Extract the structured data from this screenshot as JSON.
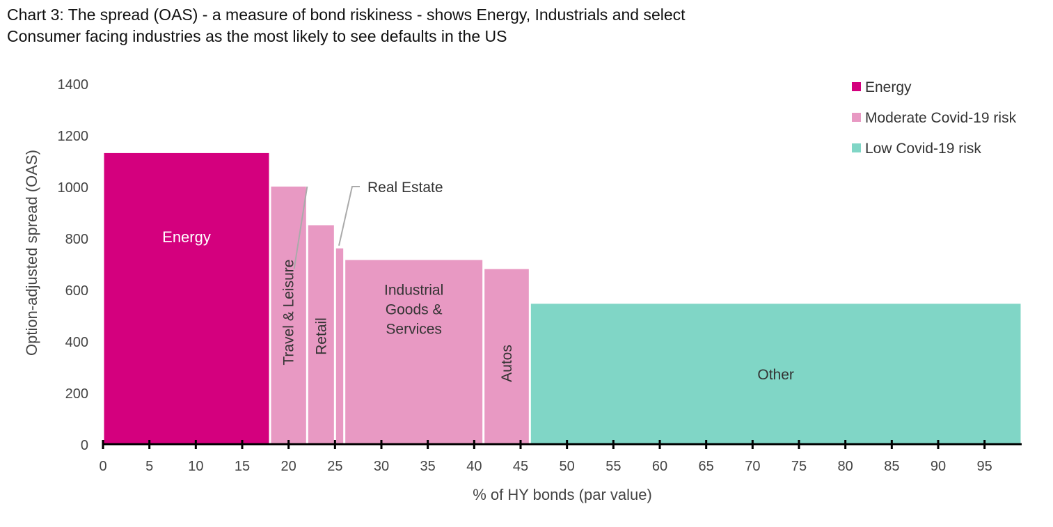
{
  "title": {
    "line1": "Chart 3: The spread (OAS) - a measure of bond riskiness - shows Energy, Industrials and select",
    "line2": "Consumer facing industries as the most likely to see defaults in the US"
  },
  "colors": {
    "energy": "#d4007e",
    "moderate": "#e899c3",
    "low": "#80d6c6",
    "axis": "#000000",
    "text": "#333333"
  },
  "chart_data": {
    "type": "bar",
    "subtype": "variable-width (marimekko) bar",
    "xlabel": "% of HY bonds (par value)",
    "ylabel": "Option-adjusted spread (OAS)",
    "xlim": [
      0,
      99
    ],
    "ylim": [
      0,
      1400
    ],
    "x_ticks": [
      0,
      5,
      10,
      15,
      20,
      25,
      30,
      35,
      40,
      45,
      50,
      55,
      60,
      65,
      70,
      75,
      80,
      85,
      90,
      95
    ],
    "y_ticks": [
      0,
      200,
      400,
      600,
      800,
      1000,
      1200,
      1400
    ],
    "grid": false,
    "legend_position": "top-right",
    "legend": [
      {
        "name": "Energy",
        "color_key": "energy"
      },
      {
        "name": "Moderate Covid-19 risk",
        "color_key": "moderate"
      },
      {
        "name": "Low Covid-19 risk",
        "color_key": "low"
      }
    ],
    "bars": [
      {
        "label": "Energy",
        "x_start": 0,
        "x_end": 18,
        "value": 1130,
        "group": "energy",
        "label_style": "inside-white"
      },
      {
        "label": "Travel & Leisure",
        "x_start": 18,
        "x_end": 22,
        "value": 1000,
        "group": "moderate",
        "label_style": "inside-vertical"
      },
      {
        "label": "Retail",
        "x_start": 22,
        "x_end": 25,
        "value": 850,
        "group": "moderate",
        "label_style": "inside-vertical"
      },
      {
        "label": "Real Estate",
        "x_start": 25,
        "x_end": 26,
        "value": 760,
        "group": "moderate",
        "label_style": "callout"
      },
      {
        "label": "Industrial Goods & Services",
        "x_start": 26,
        "x_end": 41,
        "value": 715,
        "group": "moderate",
        "label_style": "inside"
      },
      {
        "label": "Autos",
        "x_start": 41,
        "x_end": 46,
        "value": 680,
        "group": "moderate",
        "label_style": "inside-vertical"
      },
      {
        "label": "Other",
        "x_start": 46,
        "x_end": 99,
        "value": 545,
        "group": "low",
        "label_style": "inside"
      }
    ]
  }
}
